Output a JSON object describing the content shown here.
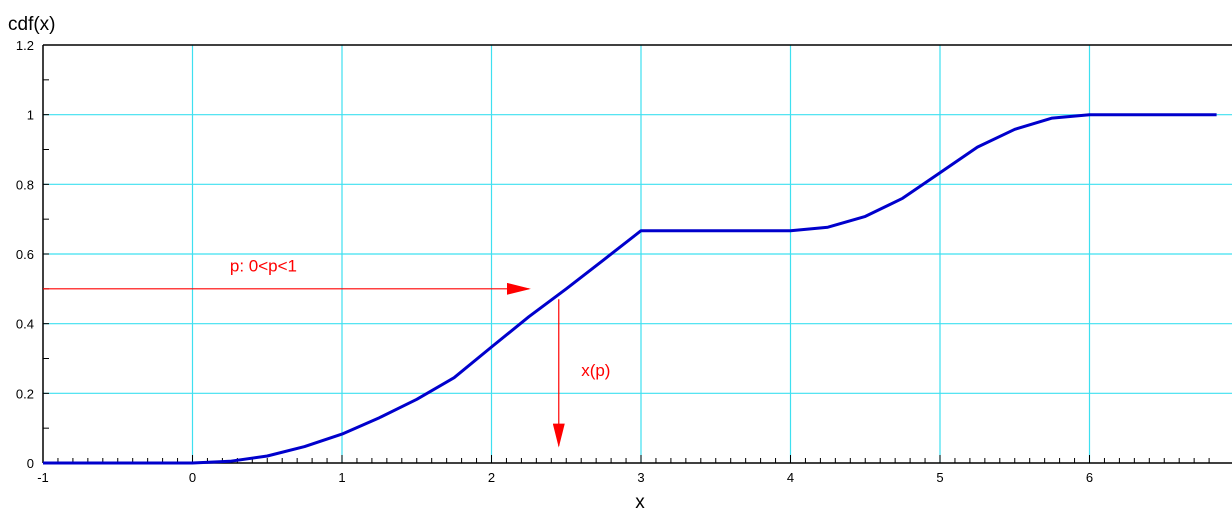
{
  "chart_data": {
    "type": "line",
    "title": "",
    "xlabel": "x",
    "ylabel": "cdf(x)",
    "xlim": [
      -1,
      6.85
    ],
    "ylim": [
      0,
      1.2
    ],
    "x_ticks": [
      -1,
      0,
      1,
      2,
      3,
      4,
      5,
      6
    ],
    "y_ticks": [
      0,
      0.2,
      0.4,
      0.6,
      0.8,
      1,
      1.2
    ],
    "x_tick_labels": [
      "-1",
      "0",
      "1",
      "2",
      "3",
      "4",
      "5",
      "6"
    ],
    "y_tick_labels": [
      "0",
      "0.2",
      "0.4",
      "0.6",
      "0.8",
      "1",
      "1.2"
    ],
    "grid": true,
    "series": [
      {
        "name": "",
        "color": "#0000cc",
        "x": [
          -1,
          0,
          0.25,
          0.5,
          0.75,
          1,
          1.25,
          1.5,
          1.75,
          2,
          2.25,
          2.5,
          2.75,
          3,
          3.25,
          3.5,
          3.75,
          4,
          4.25,
          4.5,
          4.75,
          5,
          5.25,
          5.5,
          5.75,
          6,
          6.85
        ],
        "y": [
          0,
          0,
          0.005,
          0.02,
          0.047,
          0.083,
          0.13,
          0.183,
          0.245,
          0.333,
          0.42,
          0.5,
          0.583,
          0.667,
          0.667,
          0.667,
          0.667,
          0.667,
          0.677,
          0.708,
          0.76,
          0.833,
          0.907,
          0.958,
          0.99,
          1,
          1
        ]
      }
    ],
    "annotations": [
      {
        "text": "p:  0<p<1",
        "color": "#ff0000",
        "kind": "horizontal-arrow",
        "from": [
          -1,
          0.5
        ],
        "to": [
          2.25,
          0.5
        ],
        "label_at": [
          0.25,
          0.55
        ]
      },
      {
        "text": "x(p)",
        "color": "#ff0000",
        "kind": "vertical-arrow",
        "from": [
          2.45,
          0.47
        ],
        "to": [
          2.45,
          0.05
        ],
        "label_at": [
          2.6,
          0.25
        ]
      }
    ],
    "colors": {
      "grid": "#3ee0f0",
      "curve": "#0000cc",
      "annotation": "#ff0000",
      "axis": "#000000"
    }
  }
}
